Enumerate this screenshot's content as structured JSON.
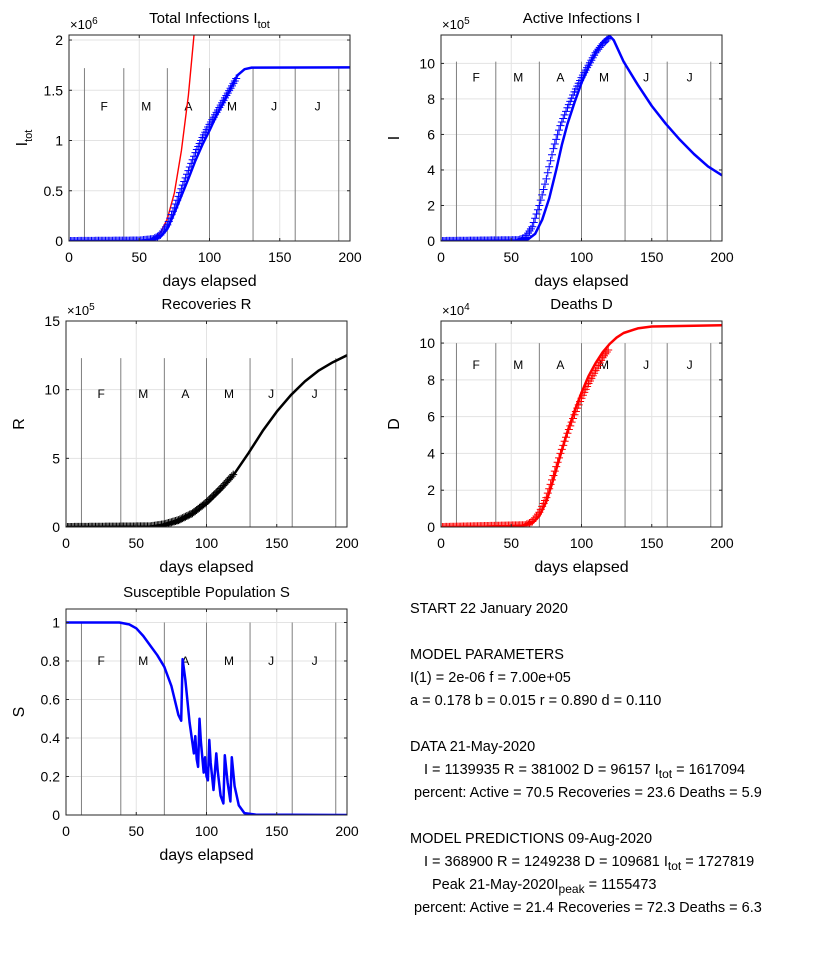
{
  "chart_data": [
    {
      "id": "itot",
      "type": "line",
      "title": "Total Infections I",
      "title_sub": "tot",
      "ylabel": "I",
      "ylabel_sub": "tot",
      "xlabel": "days elapsed",
      "exponent": "×10",
      "exponent_power": "6",
      "xlim": [
        0,
        200
      ],
      "ylim": [
        0,
        2.05
      ],
      "xticks": [
        0,
        50,
        100,
        150,
        200
      ],
      "yticks": [
        0,
        0.5,
        1,
        1.5,
        2
      ],
      "month_lines": [
        11,
        39,
        70,
        100,
        131,
        161,
        192
      ],
      "month_labels": [
        {
          "x": 25,
          "text": "F"
        },
        {
          "x": 55,
          "text": "M"
        },
        {
          "x": 85,
          "text": "A"
        },
        {
          "x": 116,
          "text": "M"
        },
        {
          "x": 146,
          "text": "J"
        },
        {
          "x": 177,
          "text": "J"
        }
      ],
      "month_label_y": 1.34,
      "month_line_top": 1.72,
      "grid": true,
      "series": [
        {
          "kind": "line",
          "color": "#ff0000",
          "width": 1.4,
          "points": [
            [
              0,
              0
            ],
            [
              50,
              0.002
            ],
            [
              60,
              0.02
            ],
            [
              65,
              0.08
            ],
            [
              70,
              0.22
            ],
            [
              75,
              0.48
            ],
            [
              80,
              0.9
            ],
            [
              85,
              1.45
            ],
            [
              89,
              2.05
            ]
          ]
        },
        {
          "kind": "line",
          "color": "#0000ff",
          "width": 2.5,
          "points": [
            [
              0,
              0
            ],
            [
              50,
              0
            ],
            [
              60,
              0.01
            ],
            [
              65,
              0.04
            ],
            [
              70,
              0.12
            ],
            [
              75,
              0.28
            ],
            [
              80,
              0.45
            ],
            [
              85,
              0.62
            ],
            [
              90,
              0.8
            ],
            [
              95,
              0.96
            ],
            [
              100,
              1.1
            ],
            [
              105,
              1.25
            ],
            [
              110,
              1.38
            ],
            [
              115,
              1.52
            ],
            [
              120,
              1.65
            ],
            [
              125,
              1.71
            ],
            [
              130,
              1.726
            ],
            [
              200,
              1.728
            ]
          ]
        },
        {
          "kind": "markers",
          "color": "#0000ff",
          "x_start": 0,
          "x_end": 119,
          "step": 1,
          "points": [
            [
              0,
              0
            ],
            [
              50,
              0.005
            ],
            [
              60,
              0.02
            ],
            [
              65,
              0.06
            ],
            [
              70,
              0.16
            ],
            [
              75,
              0.33
            ],
            [
              80,
              0.52
            ],
            [
              85,
              0.7
            ],
            [
              90,
              0.88
            ],
            [
              95,
              1.03
            ],
            [
              100,
              1.16
            ],
            [
              105,
              1.28
            ],
            [
              110,
              1.4
            ],
            [
              115,
              1.52
            ],
            [
              119,
              1.617
            ]
          ]
        }
      ]
    },
    {
      "id": "active",
      "type": "line",
      "title": "Active Infections  I",
      "ylabel": "I",
      "xlabel": "days elapsed",
      "exponent": "×10",
      "exponent_power": "5",
      "xlim": [
        0,
        200
      ],
      "ylim": [
        0,
        11.6
      ],
      "xticks": [
        0,
        50,
        100,
        150,
        200
      ],
      "yticks": [
        0,
        2,
        4,
        6,
        8,
        10
      ],
      "month_lines": [
        11,
        39,
        70,
        100,
        131,
        161,
        192
      ],
      "month_labels": [
        {
          "x": 25,
          "text": "F"
        },
        {
          "x": 55,
          "text": "M"
        },
        {
          "x": 85,
          "text": "A"
        },
        {
          "x": 116,
          "text": "M"
        },
        {
          "x": 146,
          "text": "J"
        },
        {
          "x": 177,
          "text": "J"
        }
      ],
      "month_label_y": 9.2,
      "month_line_top": 10.1,
      "grid": true,
      "series": [
        {
          "kind": "line",
          "color": "#0000ff",
          "width": 2.5,
          "points": [
            [
              0,
              0
            ],
            [
              55,
              0.02
            ],
            [
              62,
              0.1
            ],
            [
              67,
              0.4
            ],
            [
              72,
              1.2
            ],
            [
              77,
              2.4
            ],
            [
              82,
              4.0
            ],
            [
              86,
              5.4
            ],
            [
              90,
              6.6
            ],
            [
              95,
              7.8
            ],
            [
              100,
              8.9
            ],
            [
              105,
              9.8
            ],
            [
              110,
              10.6
            ],
            [
              115,
              11.2
            ],
            [
              120,
              11.55
            ],
            [
              123,
              11.3
            ],
            [
              130,
              10.1
            ],
            [
              140,
              8.8
            ],
            [
              150,
              7.6
            ],
            [
              160,
              6.6
            ],
            [
              170,
              5.7
            ],
            [
              180,
              4.9
            ],
            [
              190,
              4.2
            ],
            [
              200,
              3.7
            ]
          ]
        },
        {
          "kind": "markers",
          "color": "#0000ff",
          "x_start": 0,
          "x_end": 119,
          "step": 1,
          "points": [
            [
              0,
              0
            ],
            [
              55,
              0.05
            ],
            [
              60,
              0.2
            ],
            [
              65,
              0.8
            ],
            [
              70,
              2.0
            ],
            [
              75,
              3.5
            ],
            [
              80,
              5.2
            ],
            [
              85,
              6.5
            ],
            [
              90,
              7.5
            ],
            [
              95,
              8.4
            ],
            [
              100,
              9.2
            ],
            [
              105,
              9.9
            ],
            [
              110,
              10.6
            ],
            [
              115,
              11.1
            ],
            [
              119,
              11.4
            ]
          ]
        }
      ]
    },
    {
      "id": "recoveries",
      "type": "line",
      "title": "Recoveries  R",
      "ylabel": "R",
      "xlabel": "days elapsed",
      "exponent": "×10",
      "exponent_power": "5",
      "xlim": [
        0,
        200
      ],
      "ylim": [
        0,
        15
      ],
      "xticks": [
        0,
        50,
        100,
        150,
        200
      ],
      "yticks": [
        0,
        5,
        10,
        15
      ],
      "month_lines": [
        11,
        39,
        70,
        100,
        131,
        161,
        192
      ],
      "month_labels": [
        {
          "x": 25,
          "text": "F"
        },
        {
          "x": 55,
          "text": "M"
        },
        {
          "x": 85,
          "text": "A"
        },
        {
          "x": 116,
          "text": "M"
        },
        {
          "x": 146,
          "text": "J"
        },
        {
          "x": 177,
          "text": "J"
        }
      ],
      "month_label_y": 9.7,
      "month_line_top": 12.3,
      "grid": true,
      "series": [
        {
          "kind": "line",
          "color": "#000000",
          "width": 2.5,
          "points": [
            [
              0,
              0
            ],
            [
              60,
              0.02
            ],
            [
              70,
              0.1
            ],
            [
              80,
              0.35
            ],
            [
              90,
              0.9
            ],
            [
              100,
              1.7
            ],
            [
              110,
              2.7
            ],
            [
              120,
              3.9
            ],
            [
              130,
              5.4
            ],
            [
              140,
              7.0
            ],
            [
              150,
              8.4
            ],
            [
              160,
              9.6
            ],
            [
              170,
              10.6
            ],
            [
              180,
              11.4
            ],
            [
              190,
              12.0
            ],
            [
              200,
              12.5
            ]
          ]
        },
        {
          "kind": "markers",
          "color": "#000000",
          "x_start": 0,
          "x_end": 119,
          "step": 1,
          "points": [
            [
              0,
              0
            ],
            [
              60,
              0.05
            ],
            [
              70,
              0.2
            ],
            [
              80,
              0.5
            ],
            [
              90,
              1.0
            ],
            [
              100,
              1.8
            ],
            [
              110,
              2.8
            ],
            [
              119,
              3.81
            ]
          ]
        }
      ]
    },
    {
      "id": "deaths",
      "type": "line",
      "title": "Deaths  D",
      "ylabel": "D",
      "xlabel": "days elapsed",
      "exponent": "×10",
      "exponent_power": "4",
      "xlim": [
        0,
        200
      ],
      "ylim": [
        0,
        11.2
      ],
      "xticks": [
        0,
        50,
        100,
        150,
        200
      ],
      "yticks": [
        0,
        2,
        4,
        6,
        8,
        10
      ],
      "month_lines": [
        11,
        39,
        70,
        100,
        131,
        161,
        192
      ],
      "month_labels": [
        {
          "x": 25,
          "text": "F"
        },
        {
          "x": 55,
          "text": "M"
        },
        {
          "x": 85,
          "text": "A"
        },
        {
          "x": 116,
          "text": "M"
        },
        {
          "x": 146,
          "text": "J"
        },
        {
          "x": 177,
          "text": "J"
        }
      ],
      "month_label_y": 8.8,
      "month_line_top": 10.0,
      "grid": true,
      "series": [
        {
          "kind": "line",
          "color": "#ff0000",
          "width": 2.5,
          "points": [
            [
              0,
              0
            ],
            [
              55,
              0.02
            ],
            [
              65,
              0.2
            ],
            [
              70,
              0.6
            ],
            [
              75,
              1.4
            ],
            [
              80,
              2.6
            ],
            [
              85,
              3.9
            ],
            [
              90,
              5.2
            ],
            [
              95,
              6.3
            ],
            [
              100,
              7.3
            ],
            [
              105,
              8.2
            ],
            [
              110,
              8.9
            ],
            [
              115,
              9.5
            ],
            [
              120,
              9.95
            ],
            [
              125,
              10.3
            ],
            [
              130,
              10.55
            ],
            [
              140,
              10.8
            ],
            [
              150,
              10.9
            ],
            [
              200,
              10.97
            ]
          ]
        },
        {
          "kind": "markers",
          "color": "#ff0000",
          "x_start": 0,
          "x_end": 119,
          "step": 1,
          "points": [
            [
              0,
              0
            ],
            [
              60,
              0.1
            ],
            [
              65,
              0.3
            ],
            [
              70,
              0.8
            ],
            [
              75,
              1.6
            ],
            [
              80,
              2.8
            ],
            [
              85,
              4.0
            ],
            [
              90,
              5.1
            ],
            [
              95,
              6.1
            ],
            [
              100,
              7.0
            ],
            [
              105,
              7.8
            ],
            [
              110,
              8.5
            ],
            [
              115,
              9.2
            ],
            [
              119,
              9.62
            ]
          ]
        }
      ]
    },
    {
      "id": "susceptible",
      "type": "line",
      "title": "Susceptible Population S",
      "ylabel": "S",
      "xlabel": "days elapsed",
      "xlim": [
        0,
        200
      ],
      "ylim": [
        0,
        1.07
      ],
      "xticks": [
        0,
        50,
        100,
        150,
        200
      ],
      "yticks": [
        0,
        0.2,
        0.4,
        0.6,
        0.8,
        1
      ],
      "ytick_labels": [
        "0",
        "0.2",
        "0.4",
        "0.6",
        "0.8",
        "1"
      ],
      "month_lines": [
        11,
        39,
        70,
        100,
        131,
        161,
        192
      ],
      "month_labels": [
        {
          "x": 25,
          "text": "F"
        },
        {
          "x": 55,
          "text": "M"
        },
        {
          "x": 85,
          "text": "A"
        },
        {
          "x": 116,
          "text": "M"
        },
        {
          "x": 146,
          "text": "J"
        },
        {
          "x": 177,
          "text": "J"
        }
      ],
      "month_label_y": 0.8,
      "month_line_top": 1.0,
      "grid": true,
      "series": [
        {
          "kind": "line",
          "color": "#0000ff",
          "width": 2.5,
          "points": [
            [
              0,
              1
            ],
            [
              38,
              1
            ],
            [
              45,
              0.99
            ],
            [
              50,
              0.97
            ],
            [
              55,
              0.93
            ],
            [
              60,
              0.88
            ],
            [
              65,
              0.83
            ],
            [
              70,
              0.77
            ],
            [
              75,
              0.67
            ],
            [
              80,
              0.52
            ],
            [
              82,
              0.49
            ],
            [
              83,
              0.81
            ],
            [
              85,
              0.7
            ],
            [
              88,
              0.48
            ],
            [
              91,
              0.32
            ],
            [
              92,
              0.41
            ],
            [
              93,
              0.29
            ],
            [
              94,
              0.25
            ],
            [
              95,
              0.5
            ],
            [
              96,
              0.38
            ],
            [
              98,
              0.22
            ],
            [
              99,
              0.3
            ],
            [
              100,
              0.2
            ],
            [
              101,
              0.18
            ],
            [
              102,
              0.39
            ],
            [
              103,
              0.27
            ],
            [
              105,
              0.13
            ],
            [
              107,
              0.32
            ],
            [
              108,
              0.23
            ],
            [
              110,
              0.1
            ],
            [
              112,
              0.06
            ],
            [
              113,
              0.31
            ],
            [
              115,
              0.17
            ],
            [
              117,
              0.07
            ],
            [
              118,
              0.3
            ],
            [
              120,
              0.15
            ],
            [
              123,
              0.05
            ],
            [
              127,
              0.01
            ],
            [
              135,
              0.002
            ],
            [
              200,
              0
            ]
          ]
        }
      ]
    }
  ],
  "info": {
    "start": "START    22 January 2020",
    "model_params_title": "MODEL PARAMETERS",
    "params_line1": "I(1) = 2e-06   f = 7.00e+05",
    "params_line2": "a = 0.178   b = 0.015   r = 0.890  d = 0.110",
    "data_title": "DATA 21-May-2020",
    "data_line1a": "I = 1139935     R = 381002     D = 96157     I",
    "data_line1_sub": "tot",
    "data_line1b": " = 1617094",
    "data_line2": "percent: Active = 70.5  Recoveries = 23.6    Deaths = 5.9",
    "pred_title": "MODEL PREDICTIONS   09-Aug-2020",
    "pred_line1a": "I = 368900     R = 1249238     D = 109681     I",
    "pred_line1_sub": "tot",
    "pred_line1b": " = 1727819",
    "peak_a": "Peak  21-May-2020I",
    "peak_sub": "peak",
    "peak_b": " = 1155473",
    "pred_line3": "percent: Active = 21.4  Recoveries = 72.3    Deaths = 6.3"
  }
}
